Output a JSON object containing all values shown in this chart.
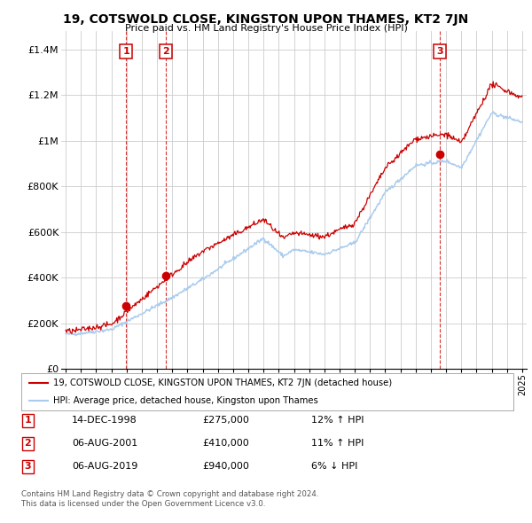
{
  "title": "19, COTSWOLD CLOSE, KINGSTON UPON THAMES, KT2 7JN",
  "subtitle": "Price paid vs. HM Land Registry's House Price Index (HPI)",
  "ylabel_ticks": [
    "£0",
    "£200K",
    "£400K",
    "£600K",
    "£800K",
    "£1M",
    "£1.2M",
    "£1.4M"
  ],
  "ytick_vals": [
    0,
    200000,
    400000,
    600000,
    800000,
    1000000,
    1200000,
    1400000
  ],
  "ylim": [
    0,
    1480000
  ],
  "sale_dates": [
    1998.96,
    2001.59,
    2019.59
  ],
  "sale_prices": [
    275000,
    410000,
    940000
  ],
  "sale_labels": [
    "1",
    "2",
    "3"
  ],
  "legend_line1": "19, COTSWOLD CLOSE, KINGSTON UPON THAMES, KT2 7JN (detached house)",
  "legend_line2": "HPI: Average price, detached house, Kingston upon Thames",
  "table_data": [
    [
      "1",
      "14-DEC-1998",
      "£275,000",
      "12% ↑ HPI"
    ],
    [
      "2",
      "06-AUG-2001",
      "£410,000",
      "11% ↑ HPI"
    ],
    [
      "3",
      "06-AUG-2019",
      "£940,000",
      "6% ↓ HPI"
    ]
  ],
  "footer": "Contains HM Land Registry data © Crown copyright and database right 2024.\nThis data is licensed under the Open Government Licence v3.0.",
  "line_color_price": "#cc0000",
  "line_color_hpi": "#aaccee",
  "grid_color": "#cccccc",
  "background_color": "#ffffff"
}
